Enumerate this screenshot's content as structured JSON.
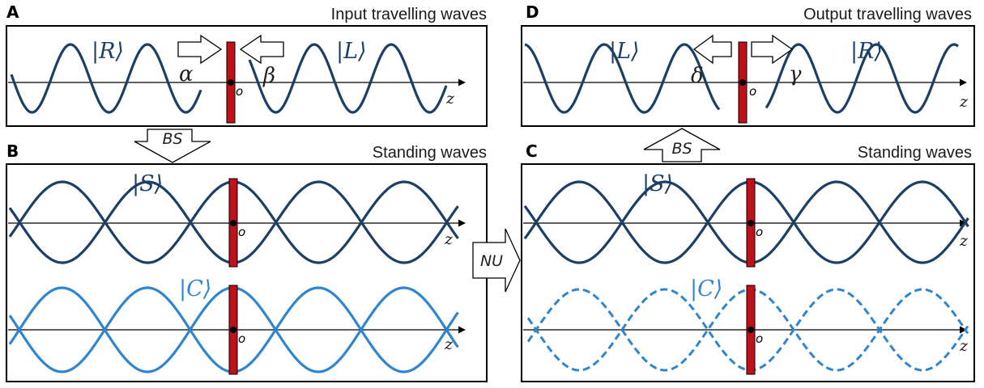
{
  "colors": {
    "dark_wave": "#1c3f66",
    "light_wave": "#2f86cf",
    "barrier": "#c0111a",
    "frame": "#000000"
  },
  "panels": {
    "A": {
      "label": "A",
      "title": "Input travelling waves",
      "ket_left": "|R⟩",
      "ket_right": "|L⟩",
      "arrow_left_label": "α",
      "arrow_right_label": "β"
    },
    "B": {
      "label": "B",
      "title": "Standing waves",
      "ket_top": "|S⟩",
      "ket_bottom": "|C⟩"
    },
    "C": {
      "label": "C",
      "title": "Standing waves",
      "ket_top": "|S⟩",
      "ket_bottom": "|C⟩"
    },
    "D": {
      "label": "D",
      "title": "Output travelling waves",
      "ket_left": "|L⟩",
      "ket_right": "|R⟩",
      "arrow_left_label": "δ",
      "arrow_right_label": "γ"
    }
  },
  "axis": {
    "label": "z",
    "origin": "o"
  },
  "transforms": {
    "bs_down": "BS",
    "bs_up": "BS",
    "nu": "NU"
  }
}
